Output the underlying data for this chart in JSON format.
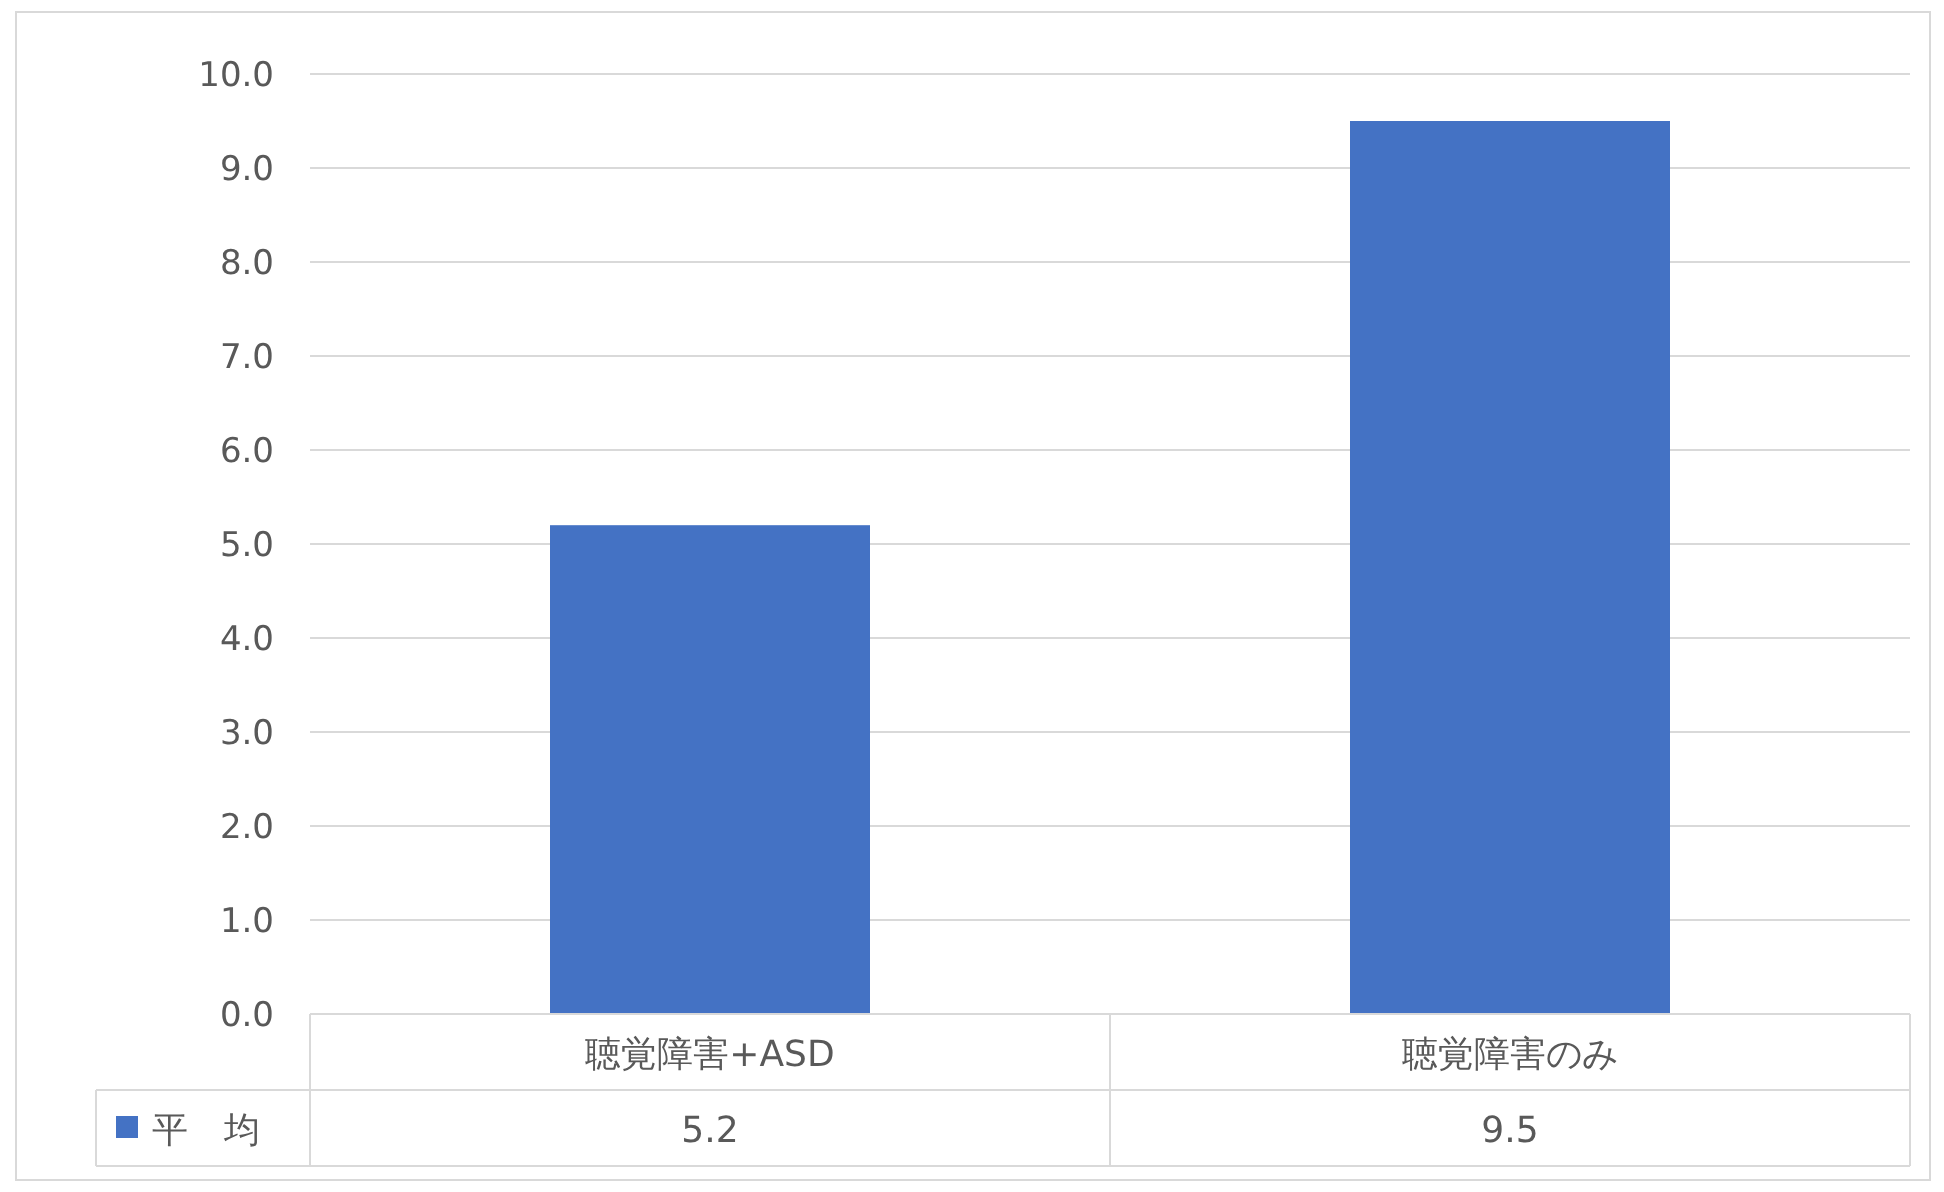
{
  "chart_data": {
    "type": "bar",
    "categories": [
      "聴覚障害+ASD",
      "聴覚障害のみ"
    ],
    "series": [
      {
        "name": "平　均",
        "color": "#4472c4",
        "values": [
          5.2,
          9.5
        ]
      }
    ],
    "ylim": [
      0,
      10
    ],
    "yticks": [
      {
        "value": 0,
        "label": "0.0"
      },
      {
        "value": 1,
        "label": "1.0"
      },
      {
        "value": 2,
        "label": "2.0"
      },
      {
        "value": 3,
        "label": "3.0"
      },
      {
        "value": 4,
        "label": "4.0"
      },
      {
        "value": 5,
        "label": "5.0"
      },
      {
        "value": 6,
        "label": "6.0"
      },
      {
        "value": 7,
        "label": "7.0"
      },
      {
        "value": 8,
        "label": "8.0"
      },
      {
        "value": 9,
        "label": "9.0"
      },
      {
        "value": 10,
        "label": "10.0"
      }
    ],
    "grid": "y",
    "data_labels": true,
    "legend": "bottom left"
  }
}
